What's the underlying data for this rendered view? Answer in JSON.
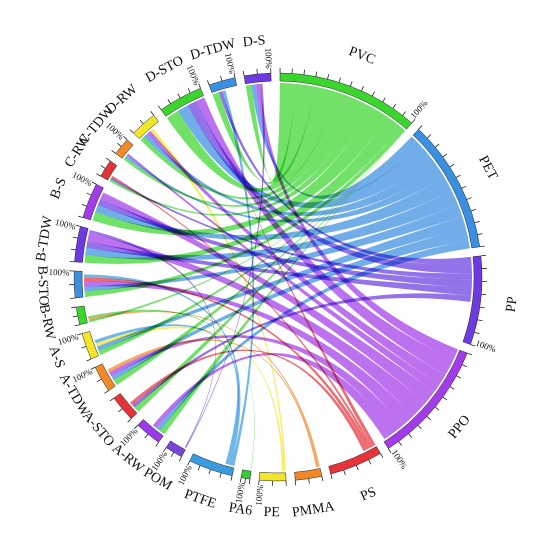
{
  "chart_data": {
    "type": "chord",
    "segments": [
      {
        "name": "PVC",
        "color": "#3ad62e",
        "pct_label": "100%"
      },
      {
        "name": "PET",
        "color": "#3a8fe0",
        "pct_label": ""
      },
      {
        "name": "PP",
        "color": "#6b3be0",
        "pct_label": "100%"
      },
      {
        "name": "PPO",
        "color": "#a23be8",
        "pct_label": "100%"
      },
      {
        "name": "PS",
        "color": "#e8323a",
        "pct_label": ""
      },
      {
        "name": "PMMA",
        "color": "#f0882a",
        "pct_label": ""
      },
      {
        "name": "PE",
        "color": "#f2e62a",
        "pct_label": "100%"
      },
      {
        "name": "PA6",
        "color": "#33cc33",
        "pct_label": "100%"
      },
      {
        "name": "PTFE",
        "color": "#3a9be0",
        "pct_label": "100%"
      },
      {
        "name": "POM",
        "color": "#7a45d8",
        "pct_label": "100%"
      },
      {
        "name": "A-RW",
        "color": "#9b3be8",
        "pct_label": "100%"
      },
      {
        "name": "A-STO",
        "color": "#e2333a",
        "pct_label": ""
      },
      {
        "name": "A-TDW",
        "color": "#f08a2a",
        "pct_label": "100%"
      },
      {
        "name": "A-S",
        "color": "#f2e62a",
        "pct_label": "100%"
      },
      {
        "name": "B-RW",
        "color": "#3ad62e",
        "pct_label": ""
      },
      {
        "name": "B-STO",
        "color": "#3a8fe0",
        "pct_label": "100%"
      },
      {
        "name": "B-TDW",
        "color": "#6b3be0",
        "pct_label": "100%"
      },
      {
        "name": "B-S",
        "color": "#a23be8",
        "pct_label": "100%"
      },
      {
        "name": "C-RW",
        "color": "#e2333a",
        "pct_label": ""
      },
      {
        "name": "C-TDW",
        "color": "#f08a2a",
        "pct_label": "100%"
      },
      {
        "name": "D-RW",
        "color": "#f2e62a",
        "pct_label": ""
      },
      {
        "name": "D-STO",
        "color": "#3ad62e",
        "pct_label": "100%"
      },
      {
        "name": "D-TDW",
        "color": "#3a8fe0",
        "pct_label": "100%"
      },
      {
        "name": "D-S",
        "color": "#6b3be0",
        "pct_label": "100%"
      }
    ],
    "segment_values": [
      16,
      15,
      10,
      14,
      6,
      3,
      3,
      1,
      5,
      2,
      3,
      3,
      3,
      3,
      2,
      3,
      4,
      4,
      2,
      2,
      3,
      5,
      3,
      3
    ],
    "links": [
      {
        "from": "PVC",
        "to": "D-S",
        "value": 1.0
      },
      {
        "from": "PVC",
        "to": "D-TDW",
        "value": 1.2
      },
      {
        "from": "PVC",
        "to": "D-STO",
        "value": 1.4
      },
      {
        "from": "PVC",
        "to": "D-RW",
        "value": 0.8
      },
      {
        "from": "PVC",
        "to": "C-TDW",
        "value": 0.8
      },
      {
        "from": "PVC",
        "to": "C-RW",
        "value": 0.6
      },
      {
        "from": "PVC",
        "to": "B-S",
        "value": 1.2
      },
      {
        "from": "PVC",
        "to": "B-TDW",
        "value": 1.0
      },
      {
        "from": "PVC",
        "to": "B-STO",
        "value": 1.0
      },
      {
        "from": "PVC",
        "to": "B-RW",
        "value": 0.6
      },
      {
        "from": "PVC",
        "to": "A-S",
        "value": 0.8
      },
      {
        "from": "PVC",
        "to": "A-TDW",
        "value": 1.0
      },
      {
        "from": "PVC",
        "to": "A-STO",
        "value": 1.0
      },
      {
        "from": "PVC",
        "to": "A-RW",
        "value": 1.0
      },
      {
        "from": "PET",
        "to": "D-S",
        "value": 0.8
      },
      {
        "from": "PET",
        "to": "D-STO",
        "value": 1.2
      },
      {
        "from": "PET",
        "to": "D-RW",
        "value": 0.8
      },
      {
        "from": "PET",
        "to": "C-TDW",
        "value": 0.6
      },
      {
        "from": "PET",
        "to": "B-S",
        "value": 1.0
      },
      {
        "from": "PET",
        "to": "B-TDW",
        "value": 1.0
      },
      {
        "from": "PET",
        "to": "B-STO",
        "value": 0.8
      },
      {
        "from": "PET",
        "to": "A-S",
        "value": 0.8
      },
      {
        "from": "PET",
        "to": "A-TDW",
        "value": 0.8
      },
      {
        "from": "PET",
        "to": "A-RW",
        "value": 0.8
      },
      {
        "from": "PP",
        "to": "D-TDW",
        "value": 0.6
      },
      {
        "from": "PP",
        "to": "D-STO",
        "value": 1.0
      },
      {
        "from": "PP",
        "to": "C-RW",
        "value": 0.6
      },
      {
        "from": "PP",
        "to": "B-S",
        "value": 0.8
      },
      {
        "from": "PP",
        "to": "B-TDW",
        "value": 0.8
      },
      {
        "from": "PP",
        "to": "A-STO",
        "value": 0.6
      },
      {
        "from": "PPO",
        "to": "D-S",
        "value": 0.8
      },
      {
        "from": "PPO",
        "to": "D-STO",
        "value": 1.2
      },
      {
        "from": "PPO",
        "to": "D-RW",
        "value": 0.8
      },
      {
        "from": "PPO",
        "to": "C-TDW",
        "value": 0.6
      },
      {
        "from": "PPO",
        "to": "B-S",
        "value": 1.0
      },
      {
        "from": "PPO",
        "to": "B-TDW",
        "value": 1.2
      },
      {
        "from": "PPO",
        "to": "B-STO",
        "value": 1.0
      },
      {
        "from": "PPO",
        "to": "A-TDW",
        "value": 0.8
      },
      {
        "from": "PPO",
        "to": "A-RW",
        "value": 0.8
      },
      {
        "from": "PS",
        "to": "D-STO",
        "value": 0.6
      },
      {
        "from": "PS",
        "to": "C-RW",
        "value": 0.4
      },
      {
        "from": "PS",
        "to": "B-STO",
        "value": 0.6
      },
      {
        "from": "PS",
        "to": "A-STO",
        "value": 0.6
      },
      {
        "from": "PMMA",
        "to": "B-RW",
        "value": 0.6
      },
      {
        "from": "PMMA",
        "to": "A-TDW",
        "value": 0.6
      },
      {
        "from": "PE",
        "to": "D-RW",
        "value": 0.6
      },
      {
        "from": "PE",
        "to": "A-S",
        "value": 0.6
      },
      {
        "from": "PA6",
        "to": "B-RW",
        "value": 0.4
      },
      {
        "from": "PTFE",
        "to": "D-TDW",
        "value": 0.6
      },
      {
        "from": "PTFE",
        "to": "B-STO",
        "value": 0.6
      },
      {
        "from": "PTFE",
        "to": "A-S",
        "value": 0.6
      },
      {
        "from": "POM",
        "to": "D-S",
        "value": 0.4
      },
      {
        "from": "POM",
        "to": "B-TDW",
        "value": 0.4
      }
    ],
    "title": "",
    "legend": "none"
  }
}
